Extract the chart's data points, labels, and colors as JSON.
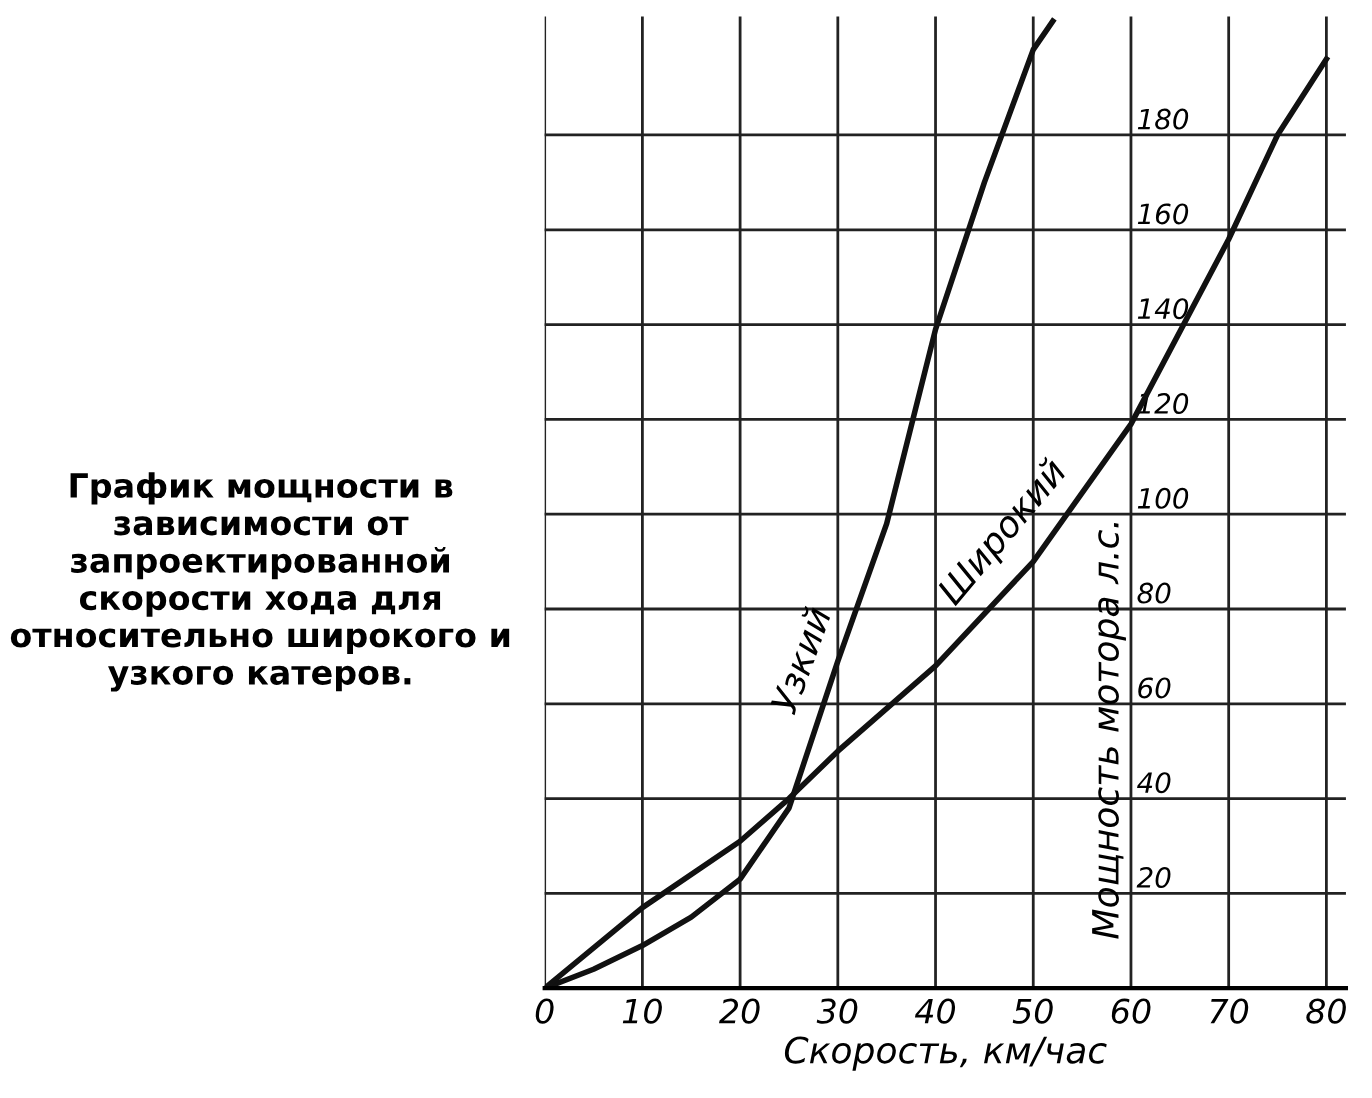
{
  "chart_data": {
    "type": "line",
    "xlabel": "Скорость, км/час",
    "ylabel": "Мощность мотора л.с.",
    "annotations": [
      "График мощности в зависимости от запроектированной скорости хода для относительно широкого и узкого катеров."
    ],
    "series": [
      {
        "name": "Узкий",
        "color": "#111111",
        "x": [
          0,
          5,
          10,
          15,
          20,
          25,
          30,
          35,
          40,
          45,
          50,
          52
        ],
        "values": [
          0,
          4,
          9,
          15,
          23,
          38,
          69,
          98,
          139,
          170,
          198,
          204
        ]
      },
      {
        "name": "Широкий",
        "color": "#111111",
        "x": [
          0,
          10,
          20,
          25,
          30,
          40,
          50,
          60,
          70,
          75,
          80
        ],
        "values": [
          0,
          17,
          31,
          40,
          50,
          68,
          90,
          119,
          158,
          180,
          196
        ]
      }
    ],
    "xlim": [
      0,
      82
    ],
    "ylim": [
      0,
      205
    ],
    "xticks": [
      0,
      10,
      20,
      30,
      40,
      50,
      60,
      70,
      80
    ],
    "yticks": [
      20,
      40,
      60,
      80,
      100,
      120,
      140,
      160,
      180
    ],
    "grid": true,
    "legend": false,
    "marker": "none",
    "line_style": "solid"
  }
}
